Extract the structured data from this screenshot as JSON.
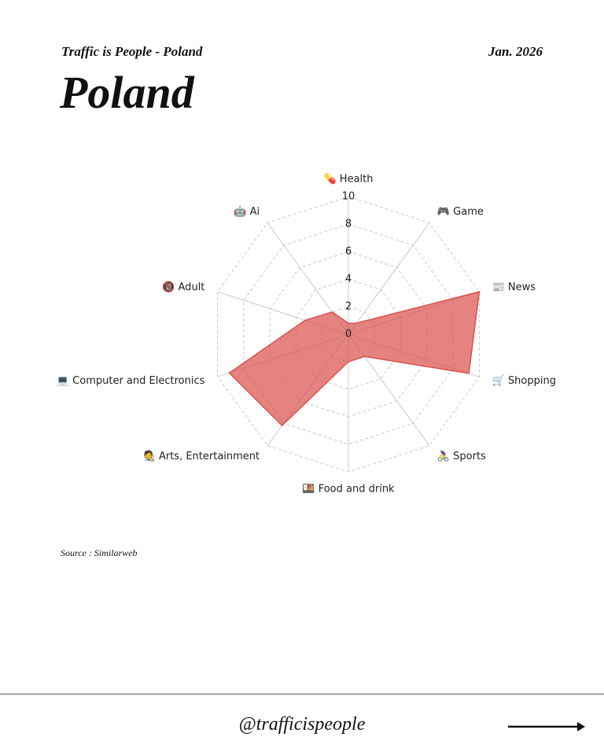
{
  "header": {
    "subtitle": "Traffic is People - Poland",
    "date": "Jan. 2026",
    "title": "Poland"
  },
  "chart_data": {
    "type": "radar",
    "categories": [
      "💊 Health",
      "🎮 Game",
      "📰 News",
      "🛒 Shopping",
      "🚴‍♀️ Sports",
      "🍱 Food and drink",
      "🧑‍🎨 Arts, Entertainment",
      "💻 Computer and Electronics",
      "🔞 Adult",
      "🤖 Ai"
    ],
    "values": [
      0.8,
      1,
      10,
      9.2,
      2,
      2,
      8.2,
      9.1,
      3.3,
      2
    ],
    "color": "#d9534f",
    "ylim": [
      0,
      10
    ],
    "yticks": [
      0,
      2,
      4,
      6,
      8,
      10
    ],
    "grid": true
  },
  "source": "Source : Similarweb",
  "footer": {
    "handle": "@trafficispeople"
  }
}
